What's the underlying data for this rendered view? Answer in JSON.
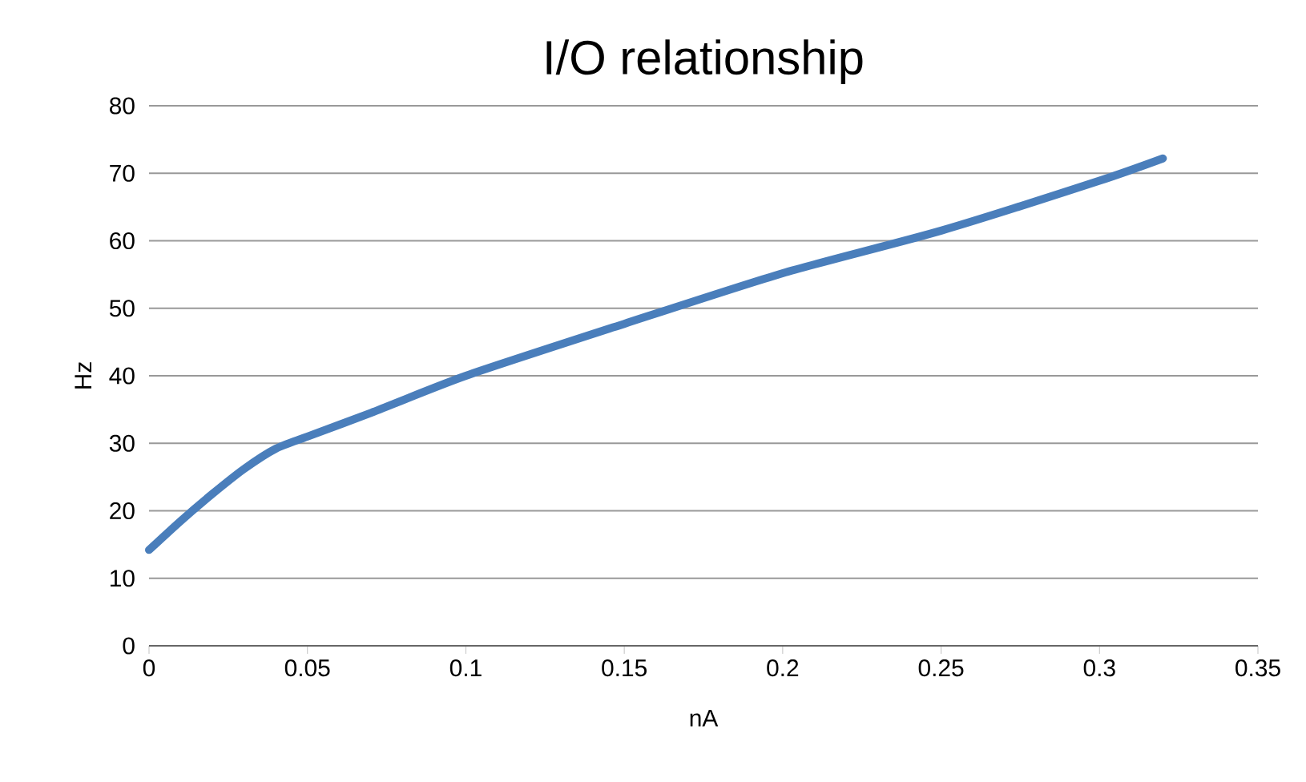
{
  "chart_data": {
    "type": "line",
    "title": "I/O relationship",
    "xlabel": "nA",
    "ylabel": "Hz",
    "series": [
      {
        "color": "#4a7ebb",
        "x": [
          0,
          0.01,
          0.02,
          0.03,
          0.04,
          0.05,
          0.07,
          0.1,
          0.15,
          0.2,
          0.25,
          0.3,
          0.32
        ],
        "values": [
          14.2,
          18.5,
          22.5,
          26.2,
          29.2,
          31,
          34.5,
          40,
          47.7,
          55.2,
          61.5,
          68.9,
          72.2
        ]
      }
    ],
    "xlim": [
      0,
      0.35
    ],
    "xticks": [
      0,
      0.05,
      0.1,
      0.15,
      0.2,
      0.25,
      0.3,
      0.35
    ],
    "ylim": [
      0,
      80
    ],
    "yticks": [
      0,
      10,
      20,
      30,
      40,
      50,
      60,
      70,
      80
    ],
    "grid": "y",
    "legend": false,
    "marker": "none",
    "line_style": "solid"
  }
}
